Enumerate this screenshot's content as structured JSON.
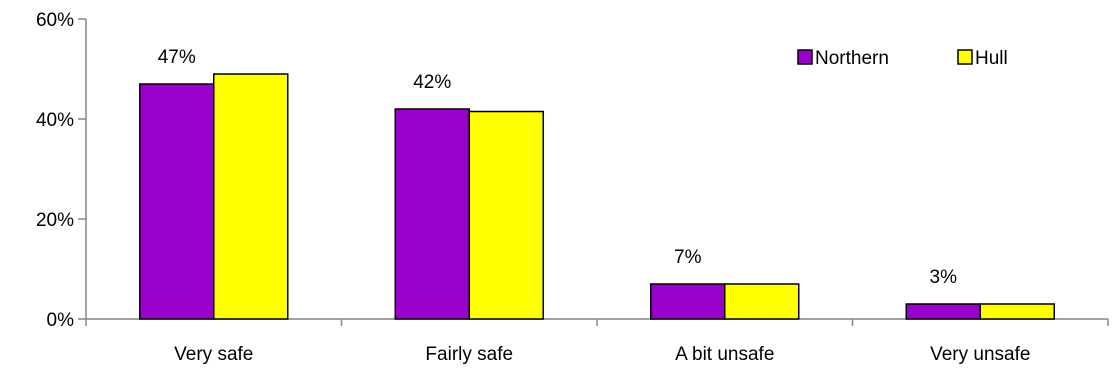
{
  "chart_data": {
    "type": "bar",
    "categories": [
      "Very safe",
      "Fairly safe",
      "A bit unsafe",
      "Very unsafe"
    ],
    "series": [
      {
        "name": "Northern",
        "color": "#9900CC",
        "values": [
          47,
          42,
          7,
          3
        ],
        "data_labels": [
          "47%",
          "42%",
          "7%",
          "3%"
        ]
      },
      {
        "name": "Hull",
        "color": "#FFFF00",
        "values": [
          49,
          41.5,
          7,
          3
        ]
      }
    ],
    "ylim": [
      0,
      60
    ],
    "yticks": [
      {
        "value": 0,
        "label": "0%"
      },
      {
        "value": 20,
        "label": "20%"
      },
      {
        "value": 40,
        "label": "40%"
      },
      {
        "value": 60,
        "label": "60%"
      }
    ],
    "grid": false,
    "legend_position": "top-right"
  }
}
